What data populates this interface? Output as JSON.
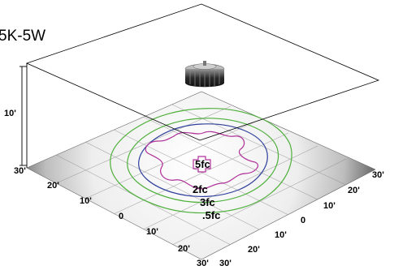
{
  "product_name": "5K-5W",
  "height_label": "10'",
  "left_axis_labels": [
    "30'",
    "20'",
    "10'",
    "0",
    "10'",
    "20'",
    "30'"
  ],
  "right_axis_labels": [
    "30'",
    "20'",
    "10'",
    "0",
    "10'",
    "20'",
    "30'"
  ],
  "contours": [
    {
      "label": "5fc",
      "color": "#b0309a"
    },
    {
      "label": "2fc",
      "color": "#2e3f9c"
    },
    {
      "label": "3fc",
      "color": "#4fb03c"
    },
    {
      "label": ".5fc",
      "color": "#4fb03c"
    }
  ]
}
